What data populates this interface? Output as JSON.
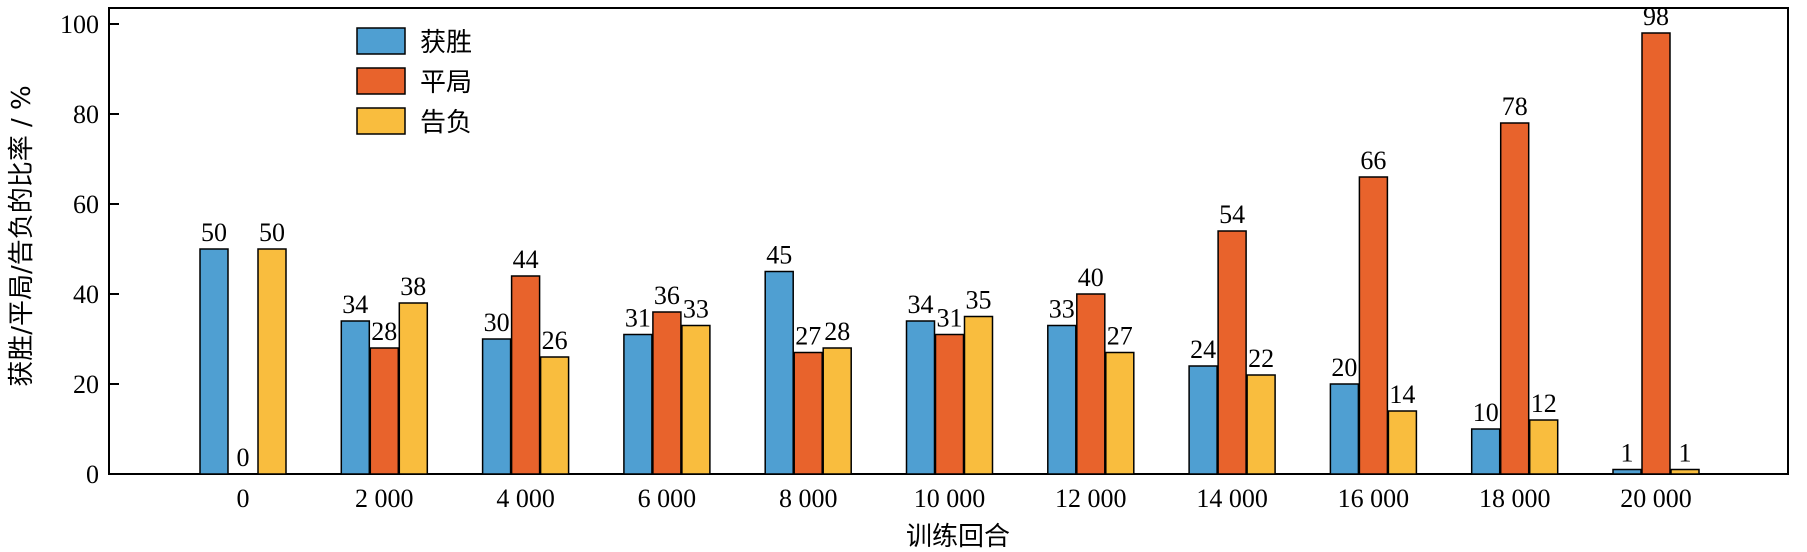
{
  "chart_data": {
    "type": "bar",
    "xlabel": "训练回合",
    "ylabel": "获胜/平局/告负的比率 / %",
    "ylim": [
      0,
      100
    ],
    "yticks": [
      "0",
      "20",
      "40",
      "60",
      "80",
      "100"
    ],
    "grid": false,
    "legend_position": "top-left",
    "categories": [
      "0",
      "2 000",
      "4 000",
      "6 000",
      "8 000",
      "10 000",
      "12 000",
      "14 000",
      "16 000",
      "18 000",
      "20 000"
    ],
    "series": [
      {
        "name": "获胜",
        "color": "#4f9fd2",
        "values": [
          50,
          34,
          30,
          31,
          45,
          34,
          33,
          24,
          20,
          10,
          1
        ]
      },
      {
        "name": "平局",
        "color": "#e8632c",
        "values": [
          0,
          28,
          44,
          36,
          27,
          31,
          40,
          54,
          66,
          78,
          98
        ]
      },
      {
        "name": "告负",
        "color": "#f9bd3e",
        "values": [
          50,
          38,
          26,
          33,
          28,
          35,
          27,
          22,
          14,
          12,
          1
        ]
      }
    ]
  }
}
